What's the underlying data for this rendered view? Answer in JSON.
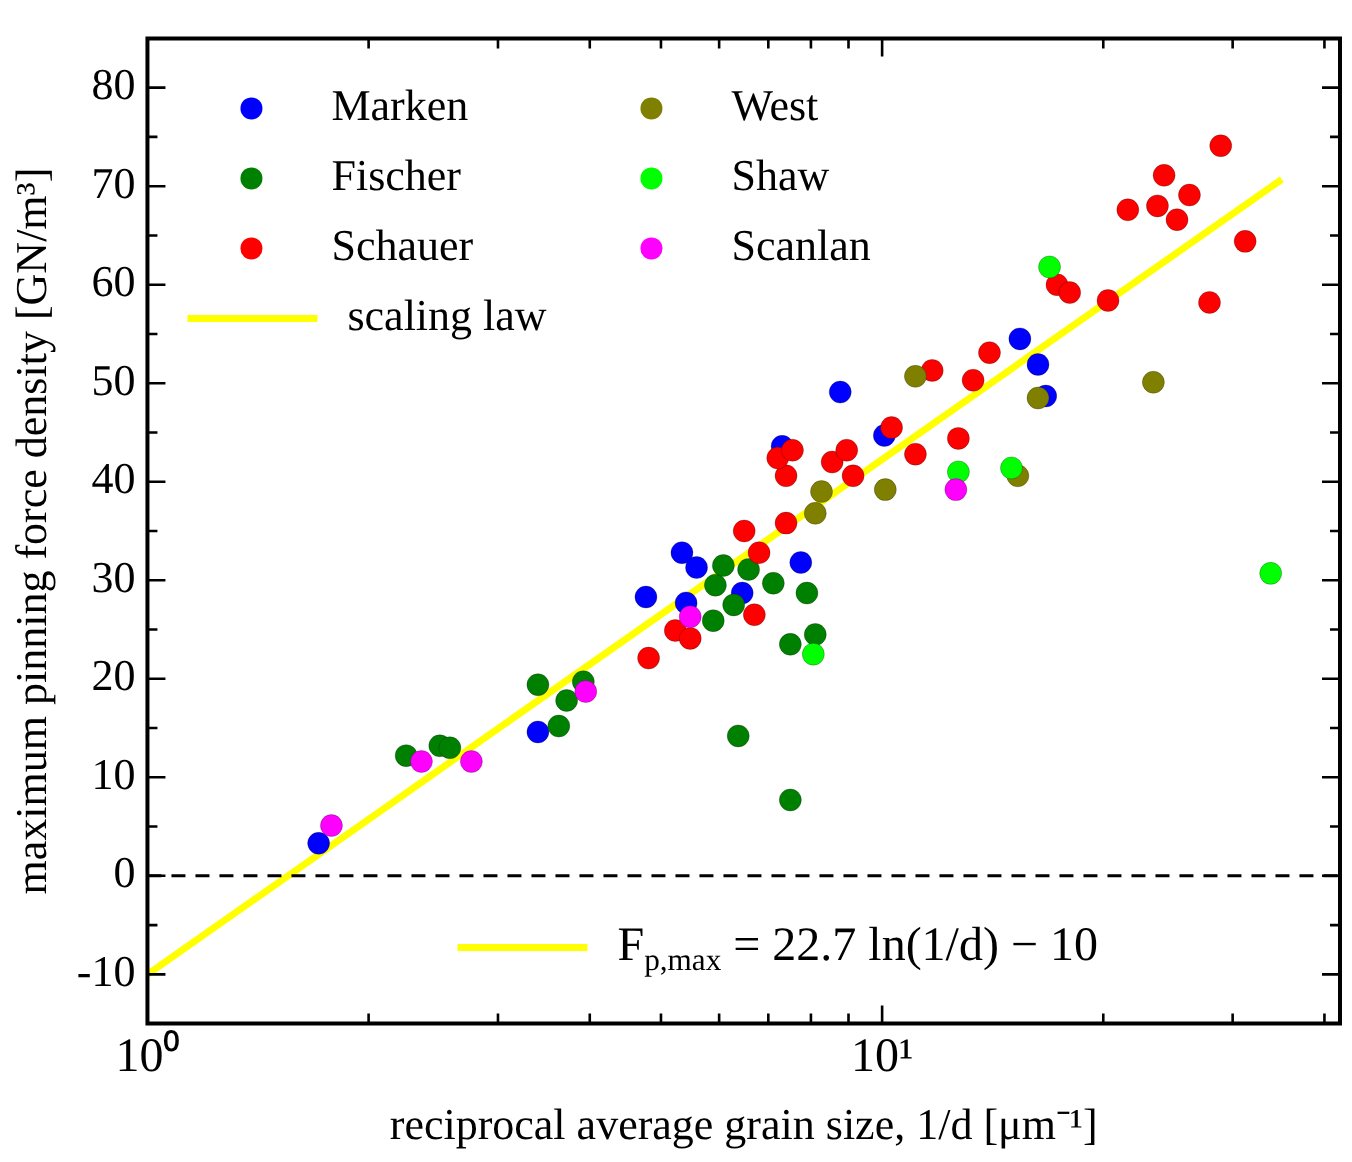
{
  "chart_data": {
    "type": "scatter",
    "xlabel": "reciprocal average grain size, 1/d [μm⁻¹]",
    "ylabel": "maximum pinning force density [GN/m³]",
    "log": "x",
    "xlim": [
      1,
      42
    ],
    "ylim": [
      -15,
      85
    ],
    "xticks": [
      {
        "value": 1,
        "label": "10⁰"
      },
      {
        "value": 2,
        "label": null
      },
      {
        "value": 3,
        "label": null
      },
      {
        "value": 4,
        "label": null
      },
      {
        "value": 5,
        "label": null
      },
      {
        "value": 6,
        "label": null
      },
      {
        "value": 7,
        "label": null
      },
      {
        "value": 8,
        "label": null
      },
      {
        "value": 9,
        "label": null
      },
      {
        "value": 10,
        "label": "10¹"
      },
      {
        "value": 20,
        "label": null
      },
      {
        "value": 30,
        "label": null
      },
      {
        "value": 40,
        "label": null
      }
    ],
    "yticks": [
      -10,
      {
        "value": -5,
        "label": null
      },
      0,
      {
        "value": 5,
        "label": null
      },
      10,
      {
        "value": 15,
        "label": null
      },
      20,
      {
        "value": 25,
        "label": null
      },
      30,
      {
        "value": 35,
        "label": null
      },
      40,
      {
        "value": 45,
        "label": null
      },
      50,
      {
        "value": 55,
        "label": null
      },
      60,
      {
        "value": 65,
        "label": null
      },
      70,
      {
        "value": 75,
        "label": null
      },
      80
    ],
    "grid": false,
    "legend": "top left",
    "marker": "circle",
    "series": [
      {
        "name": "Marken",
        "color": "#0000ff",
        "x": [
          1.71,
          3.4,
          4.77,
          5.34,
          5.59,
          5.41,
          6.45,
          7.75,
          8.77,
          10.07,
          7.31,
          15.4,
          16.3,
          16.7
        ],
        "values": [
          3.3,
          14.6,
          28.3,
          32.8,
          31.3,
          27.7,
          28.7,
          31.8,
          49.1,
          44.7,
          43.6,
          54.5,
          51.9,
          48.7
        ]
      },
      {
        "name": "Fischer",
        "color": "#008000",
        "x": [
          2.25,
          2.5,
          2.58,
          3.4,
          3.63,
          3.72,
          3.92,
          5.89,
          5.93,
          6.08,
          6.28,
          6.37,
          6.58,
          7.11,
          7.5,
          7.5,
          7.9,
          8.11
        ],
        "values": [
          12.2,
          13.2,
          13.0,
          19.4,
          15.2,
          17.8,
          19.7,
          25.9,
          29.5,
          31.5,
          27.5,
          14.2,
          31.1,
          29.7,
          23.5,
          7.7,
          28.7,
          24.5
        ]
      },
      {
        "name": "Schauer",
        "color": "#ff0000",
        "x": [
          4.81,
          5.23,
          5.48,
          6.49,
          6.7,
          6.8,
          7.4,
          7.4,
          7.21,
          7.55,
          8.55,
          8.95,
          9.13,
          10.3,
          11.1,
          11.7,
          12.7,
          13.3,
          14.0,
          17.3,
          18.0,
          20.3,
          21.6,
          23.7,
          24.2,
          25.2,
          26.2,
          28.9,
          27.9,
          31.2
        ],
        "values": [
          22.1,
          24.9,
          24.1,
          35.0,
          26.5,
          32.8,
          35.8,
          40.6,
          42.4,
          43.2,
          42.0,
          43.2,
          40.6,
          45.5,
          42.8,
          51.3,
          44.4,
          50.3,
          53.1,
          60.0,
          59.2,
          58.4,
          67.6,
          68.0,
          71.1,
          66.6,
          69.1,
          74.1,
          58.2,
          64.4
        ]
      },
      {
        "name": "West",
        "color": "#808000",
        "x": [
          8.27,
          8.11,
          10.1,
          11.1,
          16.3,
          15.3,
          23.4
        ],
        "values": [
          39.0,
          36.8,
          39.2,
          50.7,
          48.5,
          40.6,
          50.1
        ]
      },
      {
        "name": "Shaw",
        "color": "#00ff00",
        "x": [
          16.9,
          12.7,
          15.0,
          33.8,
          8.06
        ],
        "values": [
          61.8,
          41.0,
          41.4,
          30.7,
          22.5
        ]
      },
      {
        "name": "Scanlan",
        "color": "#ff00ff",
        "x": [
          1.78,
          2.36,
          2.76,
          3.95,
          5.48,
          12.6
        ],
        "values": [
          5.1,
          11.6,
          11.6,
          18.7,
          26.3,
          39.2
        ]
      },
      {
        "name": "scaling law",
        "type": "line",
        "color": "#ffff00",
        "marker": "none",
        "x": [
          1,
          35
        ],
        "values": [
          -10,
          70.7
        ]
      }
    ],
    "ref_lines": [
      {
        "axis": "y",
        "value": 0,
        "color": "#000000",
        "line_style": "dashed"
      }
    ],
    "annotations": [
      "F$_{p,max}$ = 22.7 ln(1/d) − 10"
    ]
  }
}
